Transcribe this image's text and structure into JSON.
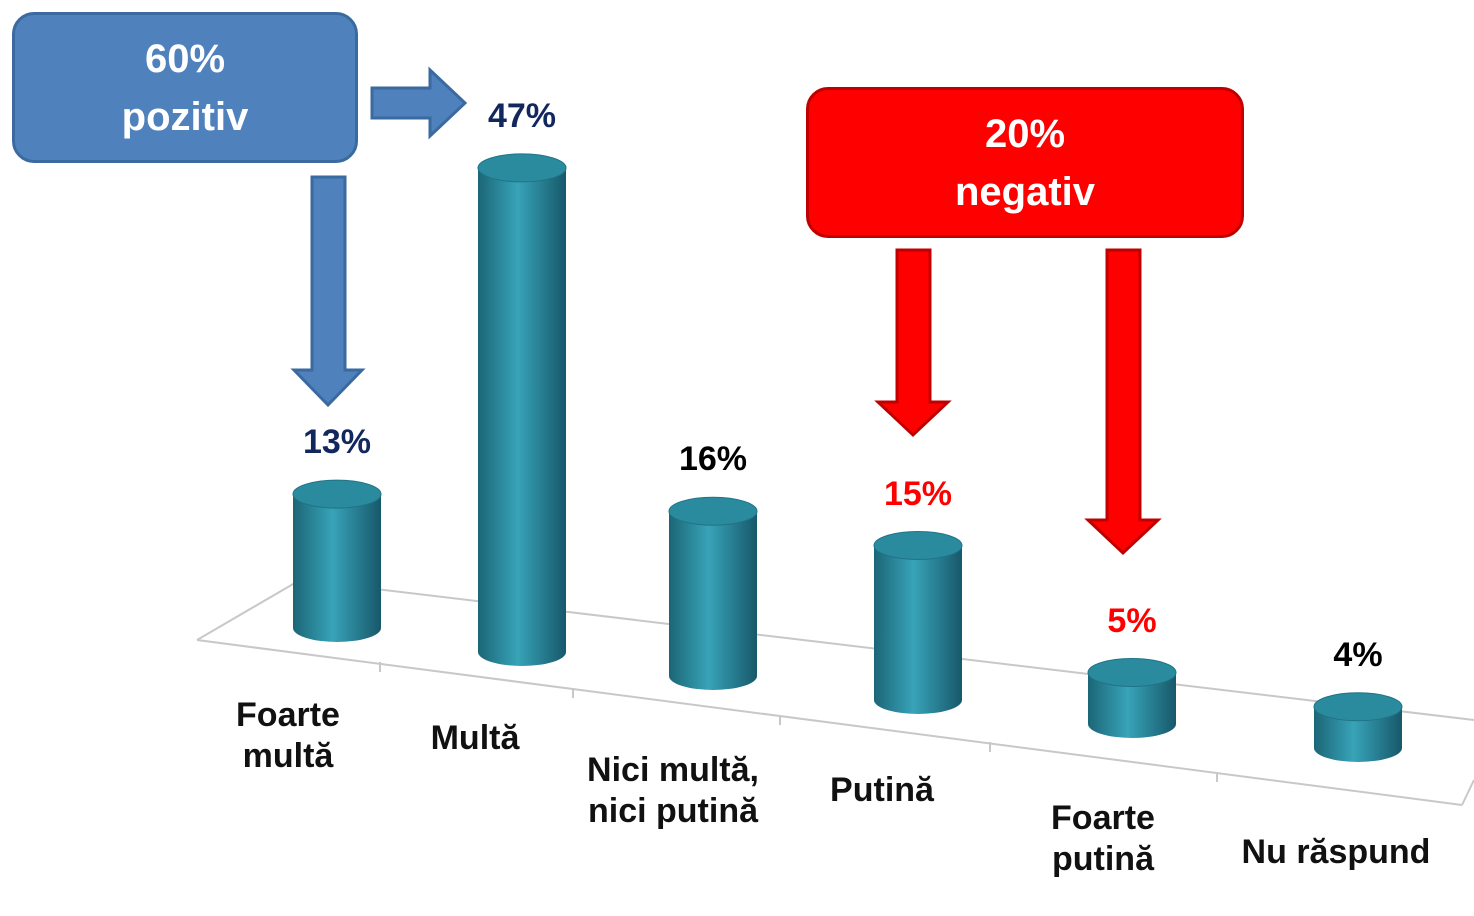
{
  "chart_data": {
    "type": "bar3d",
    "categories": [
      "Foarte multă",
      "Multă",
      "Nici multă, nici putină",
      "Putină",
      "Foarte putină",
      "Nu răspund"
    ],
    "values": [
      13,
      47,
      16,
      15,
      5,
      4
    ],
    "value_labels": [
      "13%",
      "47%",
      "16%",
      "15%",
      "5%",
      "4%"
    ],
    "value_label_colors": [
      "#12275e",
      "#12275e",
      "#000000",
      "#ff0000",
      "#ff0000",
      "#000000"
    ],
    "color": "#2a8a9e",
    "annotations": [
      {
        "text": "60% pozitiv",
        "color": "#4f81bd"
      },
      {
        "text": "20% negativ",
        "color": "#ff0000"
      }
    ]
  }
}
